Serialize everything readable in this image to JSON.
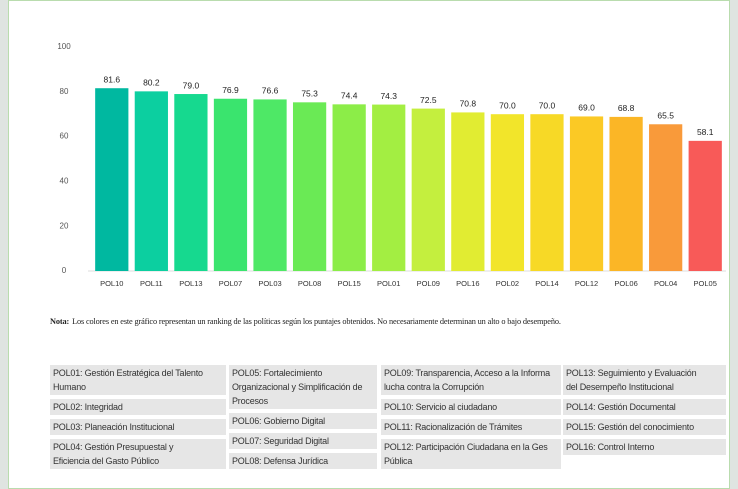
{
  "chart_data": {
    "type": "bar",
    "categories": [
      "POL10",
      "POL11",
      "POL13",
      "POL07",
      "POL03",
      "POL08",
      "POL15",
      "POL01",
      "POL09",
      "POL16",
      "POL02",
      "POL14",
      "POL12",
      "POL06",
      "POL04",
      "POL05"
    ],
    "values": [
      81.6,
      80.2,
      79.0,
      76.9,
      76.6,
      75.3,
      74.4,
      74.3,
      72.5,
      70.8,
      70.0,
      70.0,
      69.0,
      68.8,
      65.5,
      58.1
    ],
    "value_labels": [
      "81.6",
      "80.2",
      "79.0",
      "76.9",
      "76.6",
      "75.3",
      "74.4",
      "74.3",
      "72.5",
      "70.8",
      "70.0",
      "70.0",
      "69.0",
      "68.8",
      "65.5",
      "58.1"
    ],
    "colors": [
      "#00b8a0",
      "#0ccfa0",
      "#16d98f",
      "#3ae46e",
      "#4ee866",
      "#6aea55",
      "#8ced48",
      "#a3ee42",
      "#c4ef3e",
      "#e1ec32",
      "#f2e52a",
      "#f7d926",
      "#fbc925",
      "#fbb626",
      "#f99a3a",
      "#f85a58"
    ],
    "ylim": [
      0,
      100
    ],
    "yticks": [
      0,
      20,
      40,
      60,
      80,
      100
    ],
    "grid": false
  },
  "note": {
    "label": "Nota:",
    "text": "Los colores en este gráfico representan un ranking de las políticas según los puntajes  obtenidos. No necesariamente determinan un alto o bajo desempeño."
  },
  "legend": {
    "columns": [
      [
        [
          "POL01: Gestión Estratégica del Talento",
          "Humano"
        ],
        [
          "POL02: Integridad"
        ],
        [
          "POL03: Planeación Institucional"
        ],
        [
          "POL04: Gestión Presupuestal y",
          "Eficiencia del Gasto Público"
        ]
      ],
      [
        [
          "POL05: Fortalecimiento",
          "Organizacional y Simplificación de",
          "Procesos"
        ],
        [
          "POL06: Gobierno Digital"
        ],
        [
          "POL07: Seguridad Digital"
        ],
        [
          "POL08: Defensa Jurídica"
        ]
      ],
      [
        [
          "POL09: Transparencia, Acceso a la Informa",
          "lucha contra la Corrupción"
        ],
        [
          "POL10: Servicio al ciudadano"
        ],
        [
          "POL11: Racionalización de Trámites"
        ],
        [
          "POL12: Participación Ciudadana en la Ges",
          "Pública"
        ]
      ],
      [
        [
          "POL13: Seguimiento y Evaluación",
          "del Desempeño Institucional"
        ],
        [
          "POL14: Gestión Documental"
        ],
        [
          "POL15: Gestión del conocimiento"
        ],
        [
          "POL16: Control Interno"
        ]
      ]
    ]
  }
}
